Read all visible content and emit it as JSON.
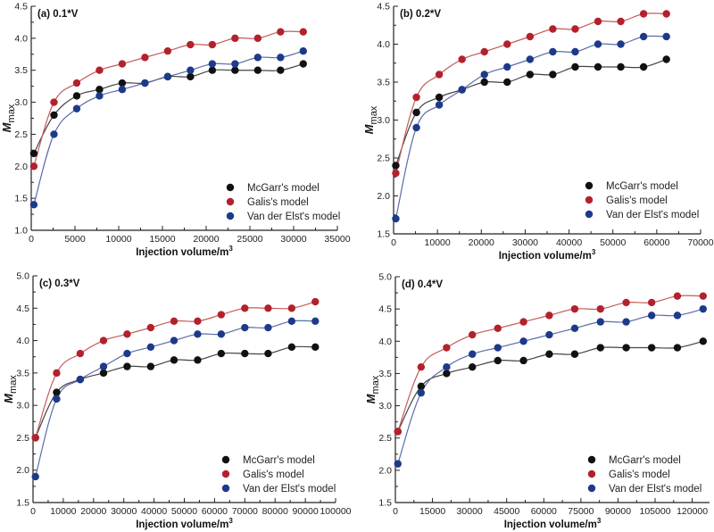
{
  "chart_data": [
    {
      "type": "scatter",
      "title": "(a) 0.1*V",
      "xlabel": "Injection volume/m",
      "xlabel_sup": "3",
      "ylabel": "M",
      "ylabel_sub": "max",
      "xlim": [
        0,
        35000
      ],
      "ylim": [
        1.0,
        4.5
      ],
      "xticks": [
        0,
        5000,
        10000,
        15000,
        20000,
        25000,
        30000,
        35000
      ],
      "yticks": [
        1.0,
        1.5,
        2.0,
        2.5,
        3.0,
        3.5,
        4.0,
        4.5
      ],
      "ytick_labels": [
        "1.0",
        "1.5",
        "2.0",
        "2.5",
        "3.0",
        "3.5",
        "4.0",
        "4.5"
      ],
      "legend_position": "bottom-right",
      "x": [
        300,
        2600,
        5200,
        7800,
        10400,
        13000,
        15600,
        18200,
        20700,
        23300,
        25900,
        28500,
        31100
      ],
      "series": [
        {
          "name": "McGarr's model",
          "color": "#111111",
          "values": [
            2.2,
            2.8,
            3.1,
            3.2,
            3.3,
            3.3,
            3.4,
            3.4,
            3.5,
            3.5,
            3.5,
            3.5,
            3.6
          ]
        },
        {
          "name": "Galis's model",
          "color": "#b3212d",
          "values": [
            2.0,
            3.0,
            3.3,
            3.5,
            3.6,
            3.7,
            3.8,
            3.9,
            3.9,
            4.0,
            4.0,
            4.1,
            4.1
          ]
        },
        {
          "name": "Van der Elst's model",
          "color": "#1d3a8a",
          "values": [
            1.4,
            2.5,
            2.9,
            3.1,
            3.2,
            3.3,
            3.4,
            3.5,
            3.6,
            3.6,
            3.7,
            3.7,
            3.8
          ]
        }
      ]
    },
    {
      "type": "scatter",
      "title": "(b) 0.2*V",
      "xlabel": "Injection volume/m",
      "xlabel_sup": "3",
      "ylabel": "M",
      "ylabel_sub": "max",
      "xlim": [
        0,
        70000
      ],
      "ylim": [
        1.5,
        4.5
      ],
      "xticks": [
        0,
        10000,
        20000,
        30000,
        40000,
        50000,
        60000,
        70000
      ],
      "yticks": [
        1.5,
        2.0,
        2.5,
        3.0,
        3.5,
        4.0,
        4.5
      ],
      "ytick_labels": [
        "1.5",
        "2.0",
        "2.5",
        "3.0",
        "3.5",
        "4.0",
        "4.5"
      ],
      "legend_position": "bottom-right",
      "x": [
        500,
        5200,
        10400,
        15600,
        20700,
        25900,
        31100,
        36300,
        41400,
        46600,
        51800,
        57000,
        62200
      ],
      "series": [
        {
          "name": "McGarr's model",
          "color": "#111111",
          "values": [
            2.4,
            3.1,
            3.3,
            3.4,
            3.5,
            3.5,
            3.6,
            3.6,
            3.7,
            3.7,
            3.7,
            3.7,
            3.8
          ]
        },
        {
          "name": "Galis's model",
          "color": "#b3212d",
          "values": [
            2.3,
            3.3,
            3.6,
            3.8,
            3.9,
            4.0,
            4.1,
            4.2,
            4.2,
            4.3,
            4.3,
            4.4,
            4.4
          ]
        },
        {
          "name": "Van der Elst's model",
          "color": "#1d3a8a",
          "values": [
            1.7,
            2.9,
            3.2,
            3.4,
            3.6,
            3.7,
            3.8,
            3.9,
            3.9,
            4.0,
            4.0,
            4.1,
            4.1
          ]
        }
      ]
    },
    {
      "type": "scatter",
      "title": "(c) 0.3*V",
      "xlabel": "Injection volume/m",
      "xlabel_sup": "3",
      "ylabel": "M",
      "ylabel_sub": "max",
      "xlim": [
        0,
        100000
      ],
      "ylim": [
        1.5,
        5.0
      ],
      "xticks": [
        0,
        10000,
        20000,
        30000,
        40000,
        50000,
        60000,
        70000,
        80000,
        90000,
        100000
      ],
      "yticks": [
        1.5,
        2.0,
        2.5,
        3.0,
        3.5,
        4.0,
        4.5,
        5.0
      ],
      "ytick_labels": [
        "1.5",
        "2.0",
        "2.5",
        "3.0",
        "3.5",
        "4.0",
        "4.5",
        "5.0"
      ],
      "legend_position": "bottom-right",
      "x": [
        800,
        7800,
        15600,
        23300,
        31100,
        38900,
        46600,
        54400,
        62200,
        70000,
        77700,
        85500,
        93300
      ],
      "series": [
        {
          "name": "McGarr's model",
          "color": "#111111",
          "values": [
            2.5,
            3.2,
            3.4,
            3.5,
            3.6,
            3.6,
            3.7,
            3.7,
            3.8,
            3.8,
            3.8,
            3.9,
            3.9
          ]
        },
        {
          "name": "Galis's model",
          "color": "#b3212d",
          "values": [
            2.5,
            3.5,
            3.8,
            4.0,
            4.1,
            4.2,
            4.3,
            4.3,
            4.4,
            4.5,
            4.5,
            4.5,
            4.6
          ]
        },
        {
          "name": "Van der Elst's model",
          "color": "#1d3a8a",
          "values": [
            1.9,
            3.1,
            3.4,
            3.6,
            3.8,
            3.9,
            4.0,
            4.1,
            4.1,
            4.2,
            4.2,
            4.3,
            4.3
          ]
        }
      ]
    },
    {
      "type": "scatter",
      "title": "(d) 0.4*V",
      "xlabel": "Injection volume/m",
      "xlabel_sup": "3",
      "ylabel": "M",
      "ylabel_sub": "max",
      "xlim": [
        0,
        127000
      ],
      "ylim": [
        1.5,
        5.0
      ],
      "xticks": [
        0,
        15000,
        30000,
        45000,
        60000,
        75000,
        90000,
        105000,
        120000
      ],
      "yticks": [
        1.5,
        2.0,
        2.5,
        3.0,
        3.5,
        4.0,
        4.5,
        5.0
      ],
      "ytick_labels": [
        "1.5",
        "2.0",
        "2.5",
        "3.0",
        "3.5",
        "4.0",
        "4.5",
        "5.0"
      ],
      "legend_position": "bottom-right",
      "x": [
        1000,
        10400,
        20700,
        31100,
        41400,
        51800,
        62200,
        72500,
        82900,
        93300,
        103600,
        114000,
        124400
      ],
      "series": [
        {
          "name": "McGarr's model",
          "color": "#111111",
          "values": [
            2.6,
            3.3,
            3.5,
            3.6,
            3.7,
            3.7,
            3.8,
            3.8,
            3.9,
            3.9,
            3.9,
            3.9,
            4.0
          ]
        },
        {
          "name": "Galis's model",
          "color": "#b3212d",
          "values": [
            2.6,
            3.6,
            3.9,
            4.1,
            4.2,
            4.3,
            4.4,
            4.5,
            4.5,
            4.6,
            4.6,
            4.7,
            4.7
          ]
        },
        {
          "name": "Van der Elst's model",
          "color": "#1d3a8a",
          "values": [
            2.1,
            3.2,
            3.6,
            3.8,
            3.9,
            4.0,
            4.1,
            4.2,
            4.3,
            4.3,
            4.4,
            4.4,
            4.5
          ]
        }
      ]
    }
  ]
}
